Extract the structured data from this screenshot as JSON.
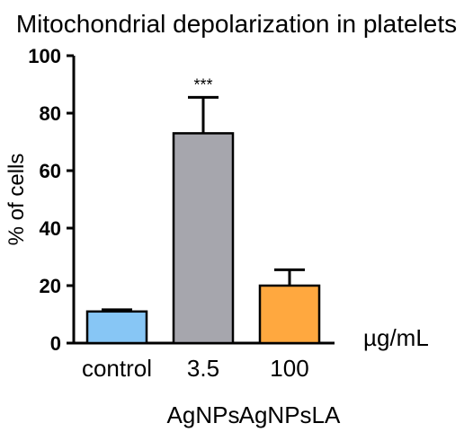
{
  "chart_data": {
    "type": "bar",
    "title": "Mitochondrial depolarization in platelets",
    "xlabel": "",
    "ylabel": "% of cells",
    "unit_label": "µg/mL",
    "ylim": [
      0,
      100
    ],
    "yticks": [
      0,
      20,
      40,
      60,
      80,
      100
    ],
    "grid": false,
    "legend": "none",
    "categories": [
      "control",
      "3.5",
      "100"
    ],
    "group_labels": [
      "",
      "AgNPs",
      "AgNPsLA"
    ],
    "values": [
      11,
      73,
      20
    ],
    "errors": [
      0.6,
      12.5,
      5.5
    ],
    "annotations": [
      "",
      "***",
      ""
    ],
    "colors": [
      "#87c6f5",
      "#a6a6ad",
      "#ffa83f"
    ]
  }
}
